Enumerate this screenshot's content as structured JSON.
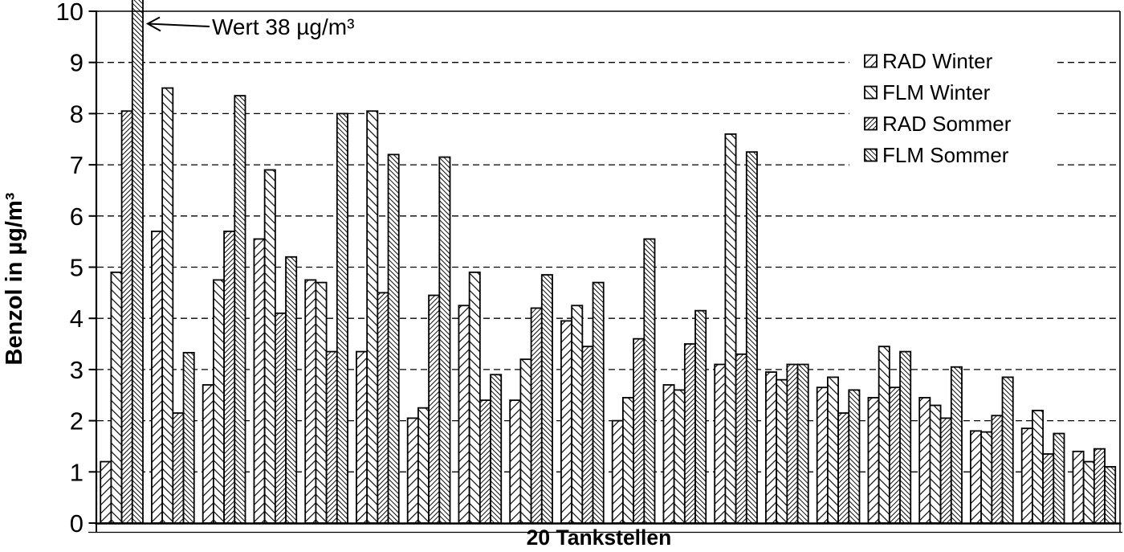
{
  "colors": {
    "foreground": "#000000",
    "background": "#ffffff"
  },
  "chart_data": {
    "type": "bar",
    "title": "",
    "xlabel": "20 Tankstellen",
    "ylabel": "Benzol in µg/m³",
    "ylim": [
      0,
      10
    ],
    "yticks": [
      0,
      1,
      2,
      3,
      4,
      5,
      6,
      7,
      8,
      9,
      10
    ],
    "grid": "horizontal-dashed",
    "legend_position": "top-right-inside",
    "num_groups": 20,
    "annotation": {
      "text": "Wert 38 µg/m³",
      "points_to": "group 1, FLM Sommer bar (clipped at axis top)",
      "actual_value": 38
    },
    "series": [
      {
        "name": "RAD Winter",
        "hatch": "fwd-light",
        "values": [
          1.2,
          5.7,
          2.7,
          5.55,
          4.75,
          3.35,
          2.05,
          4.25,
          2.4,
          3.95,
          2.0,
          2.7,
          3.1,
          2.95,
          2.65,
          2.45,
          2.45,
          1.8,
          1.85,
          1.4
        ]
      },
      {
        "name": "FLM Winter",
        "hatch": "back-light",
        "values": [
          4.9,
          8.5,
          4.75,
          6.9,
          4.7,
          8.05,
          2.25,
          4.9,
          3.2,
          4.25,
          2.45,
          2.6,
          7.6,
          2.8,
          2.85,
          3.45,
          2.3,
          1.78,
          2.2,
          1.2
        ]
      },
      {
        "name": "RAD Sommer",
        "hatch": "fwd-dense",
        "values": [
          8.05,
          2.15,
          5.7,
          4.1,
          3.35,
          4.5,
          4.45,
          2.4,
          4.2,
          3.45,
          3.6,
          3.5,
          3.3,
          3.1,
          2.15,
          2.65,
          2.05,
          2.1,
          1.35,
          1.45
        ]
      },
      {
        "name": "FLM Sommer",
        "hatch": "back-dense",
        "values": [
          38,
          3.33,
          8.35,
          5.2,
          8.0,
          7.2,
          7.15,
          2.9,
          4.85,
          4.7,
          5.55,
          4.15,
          7.25,
          3.1,
          2.6,
          3.35,
          3.05,
          2.85,
          1.75,
          1.1
        ]
      }
    ]
  }
}
